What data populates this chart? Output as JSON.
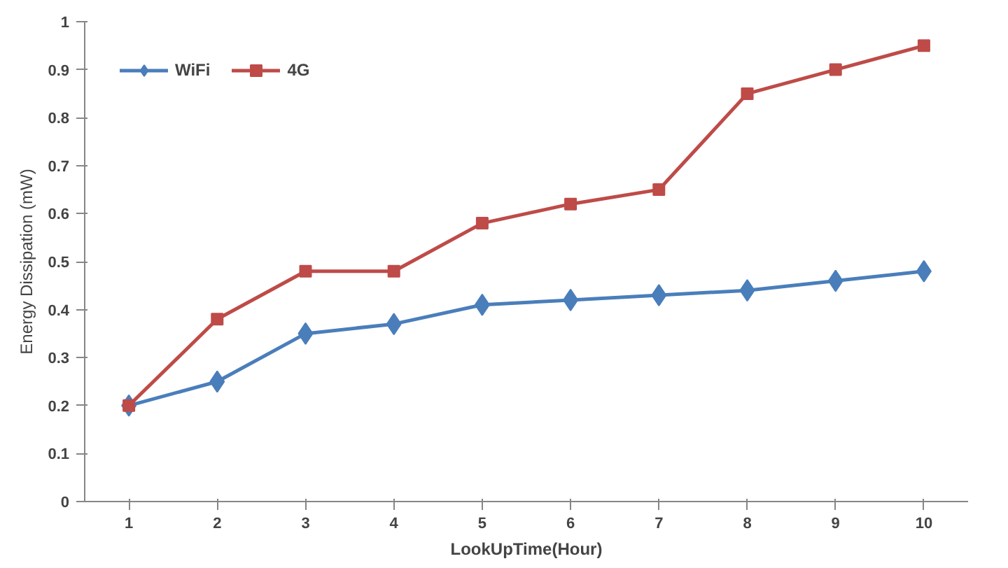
{
  "chart_data": {
    "type": "line",
    "xlabel": "LookUpTime(Hour)",
    "ylabel": "Energy Dissipation (mW)",
    "categories": [
      "1",
      "2",
      "3",
      "4",
      "5",
      "6",
      "7",
      "8",
      "9",
      "10"
    ],
    "series": [
      {
        "name": "WiFi",
        "color": "#4a7ebb",
        "marker": "diamond",
        "values": [
          0.2,
          0.25,
          0.35,
          0.37,
          0.41,
          0.42,
          0.43,
          0.44,
          0.46,
          0.48
        ]
      },
      {
        "name": "4G",
        "color": "#be4b48",
        "marker": "square",
        "values": [
          0.2,
          0.38,
          0.48,
          0.48,
          0.58,
          0.62,
          0.65,
          0.85,
          0.9,
          0.95
        ]
      }
    ],
    "ylim": [
      0,
      1
    ],
    "yticks": [
      0,
      0.1,
      0.2,
      0.3,
      0.4,
      0.5,
      0.6,
      0.7,
      0.8,
      0.9,
      1
    ],
    "grid": false,
    "legend": "top left",
    "line_style": "solid"
  }
}
